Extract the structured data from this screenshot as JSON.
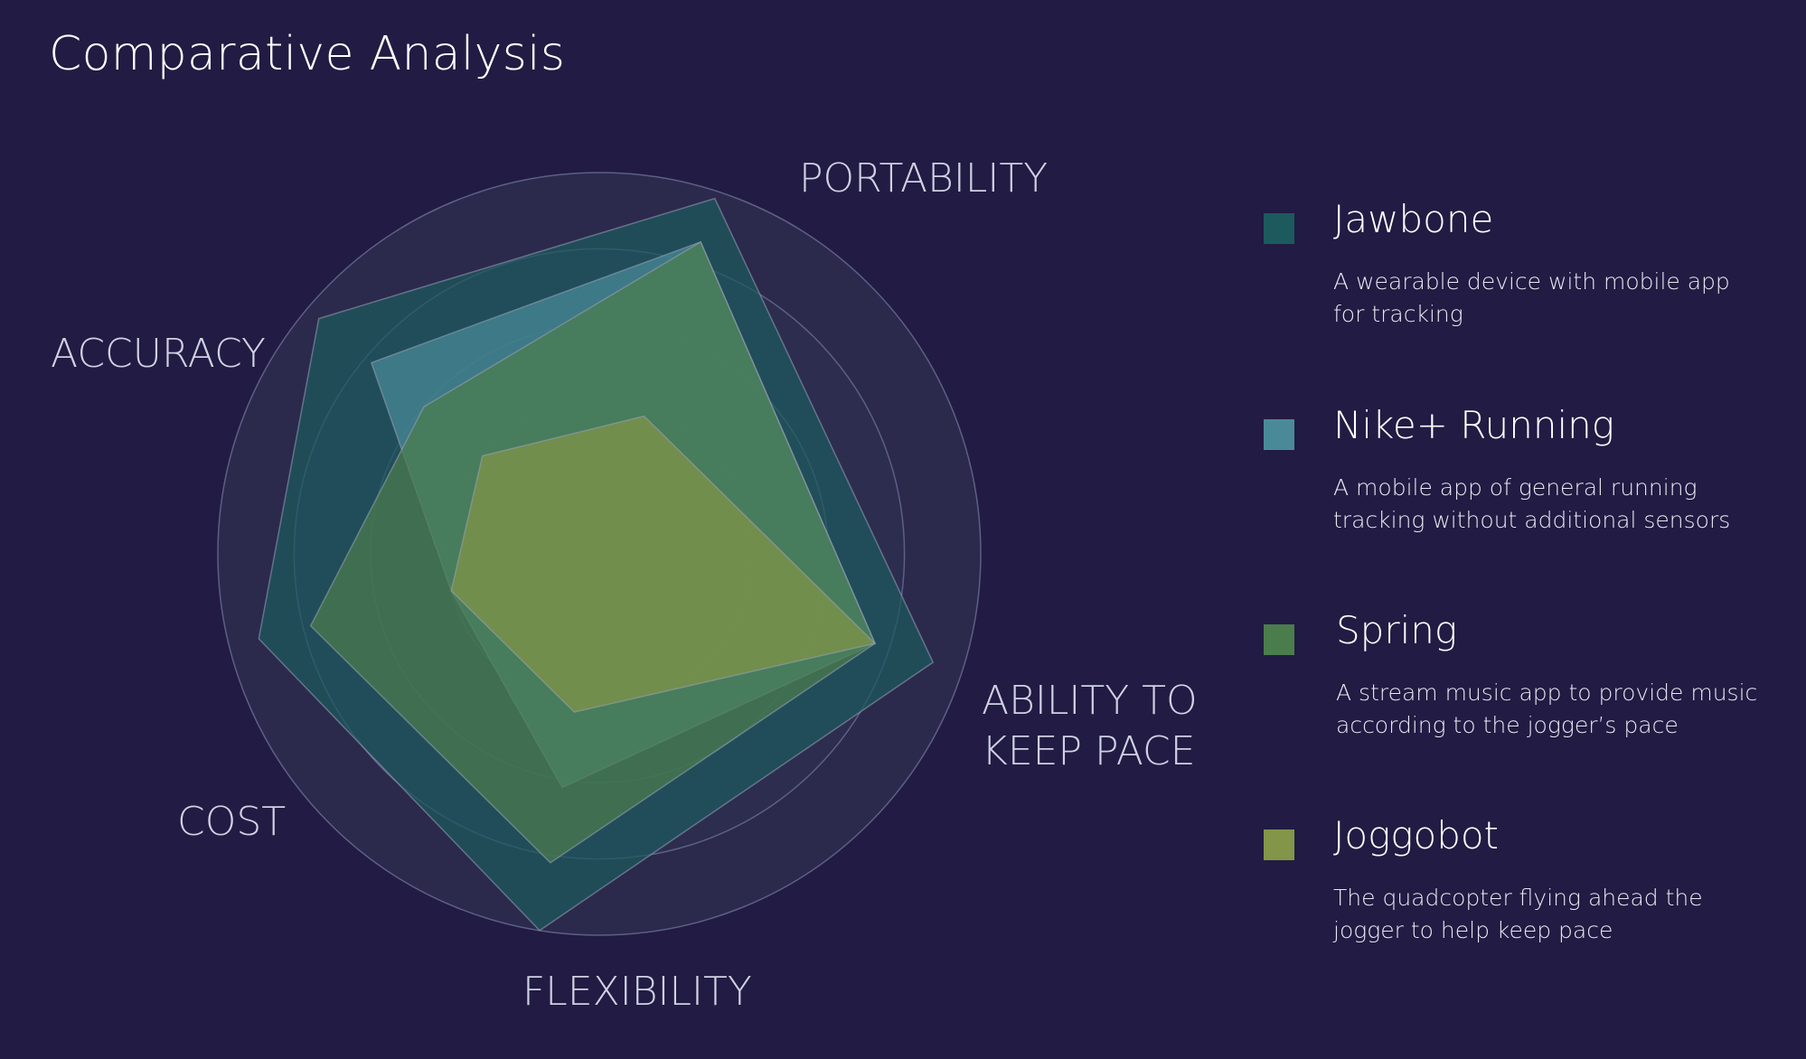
{
  "title": "Comparative Analysis",
  "chart_data": {
    "type": "radar",
    "title": "Comparative Analysis",
    "axes": [
      "PORTABILITY",
      "ABILITY TO KEEP PACE",
      "FLEXIBILITY",
      "COST",
      "ACCURACY"
    ],
    "axis_labels": {
      "portability": "PORTABILITY",
      "keep_pace_line1": "ABILITY TO",
      "keep_pace_line2": "KEEP PACE",
      "flexibility": "FLEXIBILITY",
      "cost": "COST",
      "accuracy": "ACCURACY"
    },
    "rlim": [
      0,
      5
    ],
    "rings": [
      2,
      3,
      4,
      5
    ],
    "grid": true,
    "legend_position": "right",
    "series": [
      {
        "name": "Jawbone",
        "description": "A wearable device with mobile app for tracking",
        "color": "#1c5a5d",
        "values": [
          4.9,
          4.6,
          5.0,
          4.6,
          4.8
        ]
      },
      {
        "name": "Nike+ Running",
        "description": "A mobile app of general running tracking without additional sensors",
        "color": "#4a8a98",
        "values": [
          4.3,
          3.8,
          3.1,
          2.0,
          3.9
        ]
      },
      {
        "name": "Spring",
        "description": "A stream music app to provide music according to the jogger’s pace",
        "color": "#4b7d4c",
        "values": [
          4.3,
          3.8,
          4.1,
          3.9,
          3.0
        ]
      },
      {
        "name": "Joggobot",
        "description": "The quadcopter flying ahead the jogger to help keep pace",
        "color": "#839548",
        "values": [
          1.9,
          3.8,
          2.1,
          2.0,
          2.0
        ]
      }
    ]
  }
}
